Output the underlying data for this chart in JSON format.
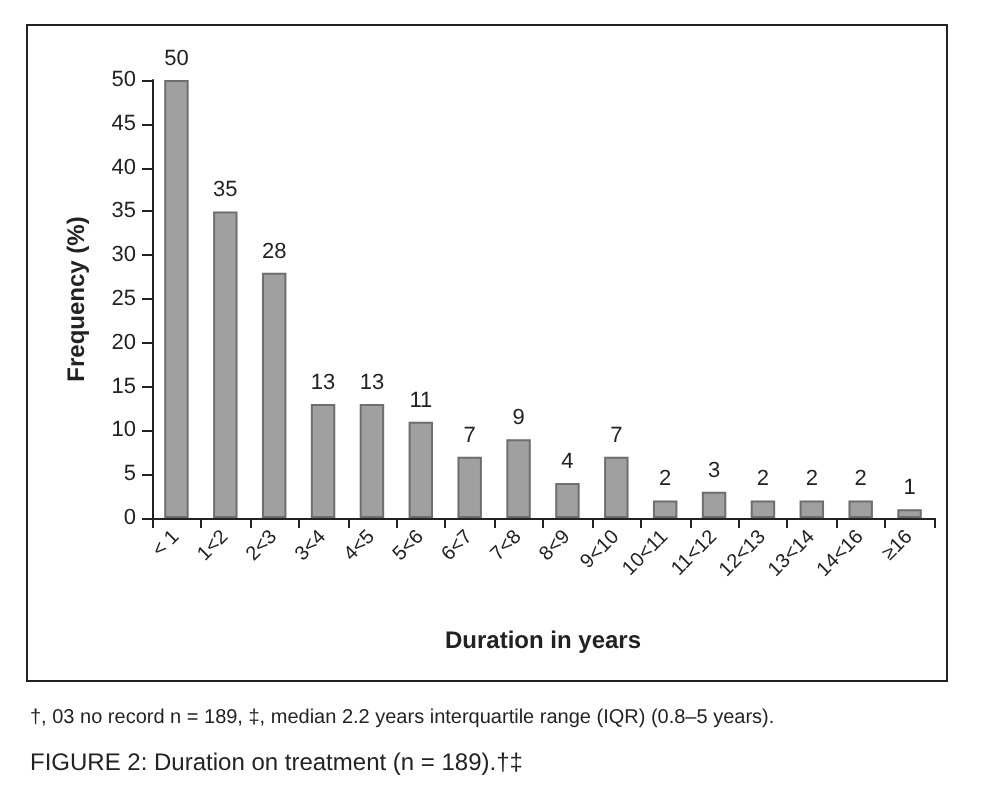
{
  "chart_data": {
    "type": "bar",
    "title": "FIGURE 2: Duration on treatment (n = 189).†‡",
    "annotations": [
      "†, 03 no record n = 189, ‡, median 2.2 years interquartile range (IQR) (0.8–5 years)."
    ],
    "xlabel": "Duration in years",
    "ylabel": "Frequency (%)",
    "categories": [
      "< 1",
      "1<2",
      "2<3",
      "3<4",
      "4<5",
      "5<6",
      "6<7",
      "7<8",
      "8<9",
      "9<10",
      "10<11",
      "11<12",
      "12<13",
      "13<14",
      "14<16",
      "≥16"
    ],
    "values": [
      50,
      35,
      28,
      13,
      13,
      11,
      7,
      9,
      4,
      7,
      2,
      3,
      2,
      2,
      2,
      1
    ],
    "color": "#a0a0a0",
    "ylim": [
      0,
      50
    ],
    "yticks": [
      0,
      5,
      10,
      15,
      20,
      25,
      30,
      35,
      40,
      45,
      50
    ],
    "data_labels": true
  }
}
